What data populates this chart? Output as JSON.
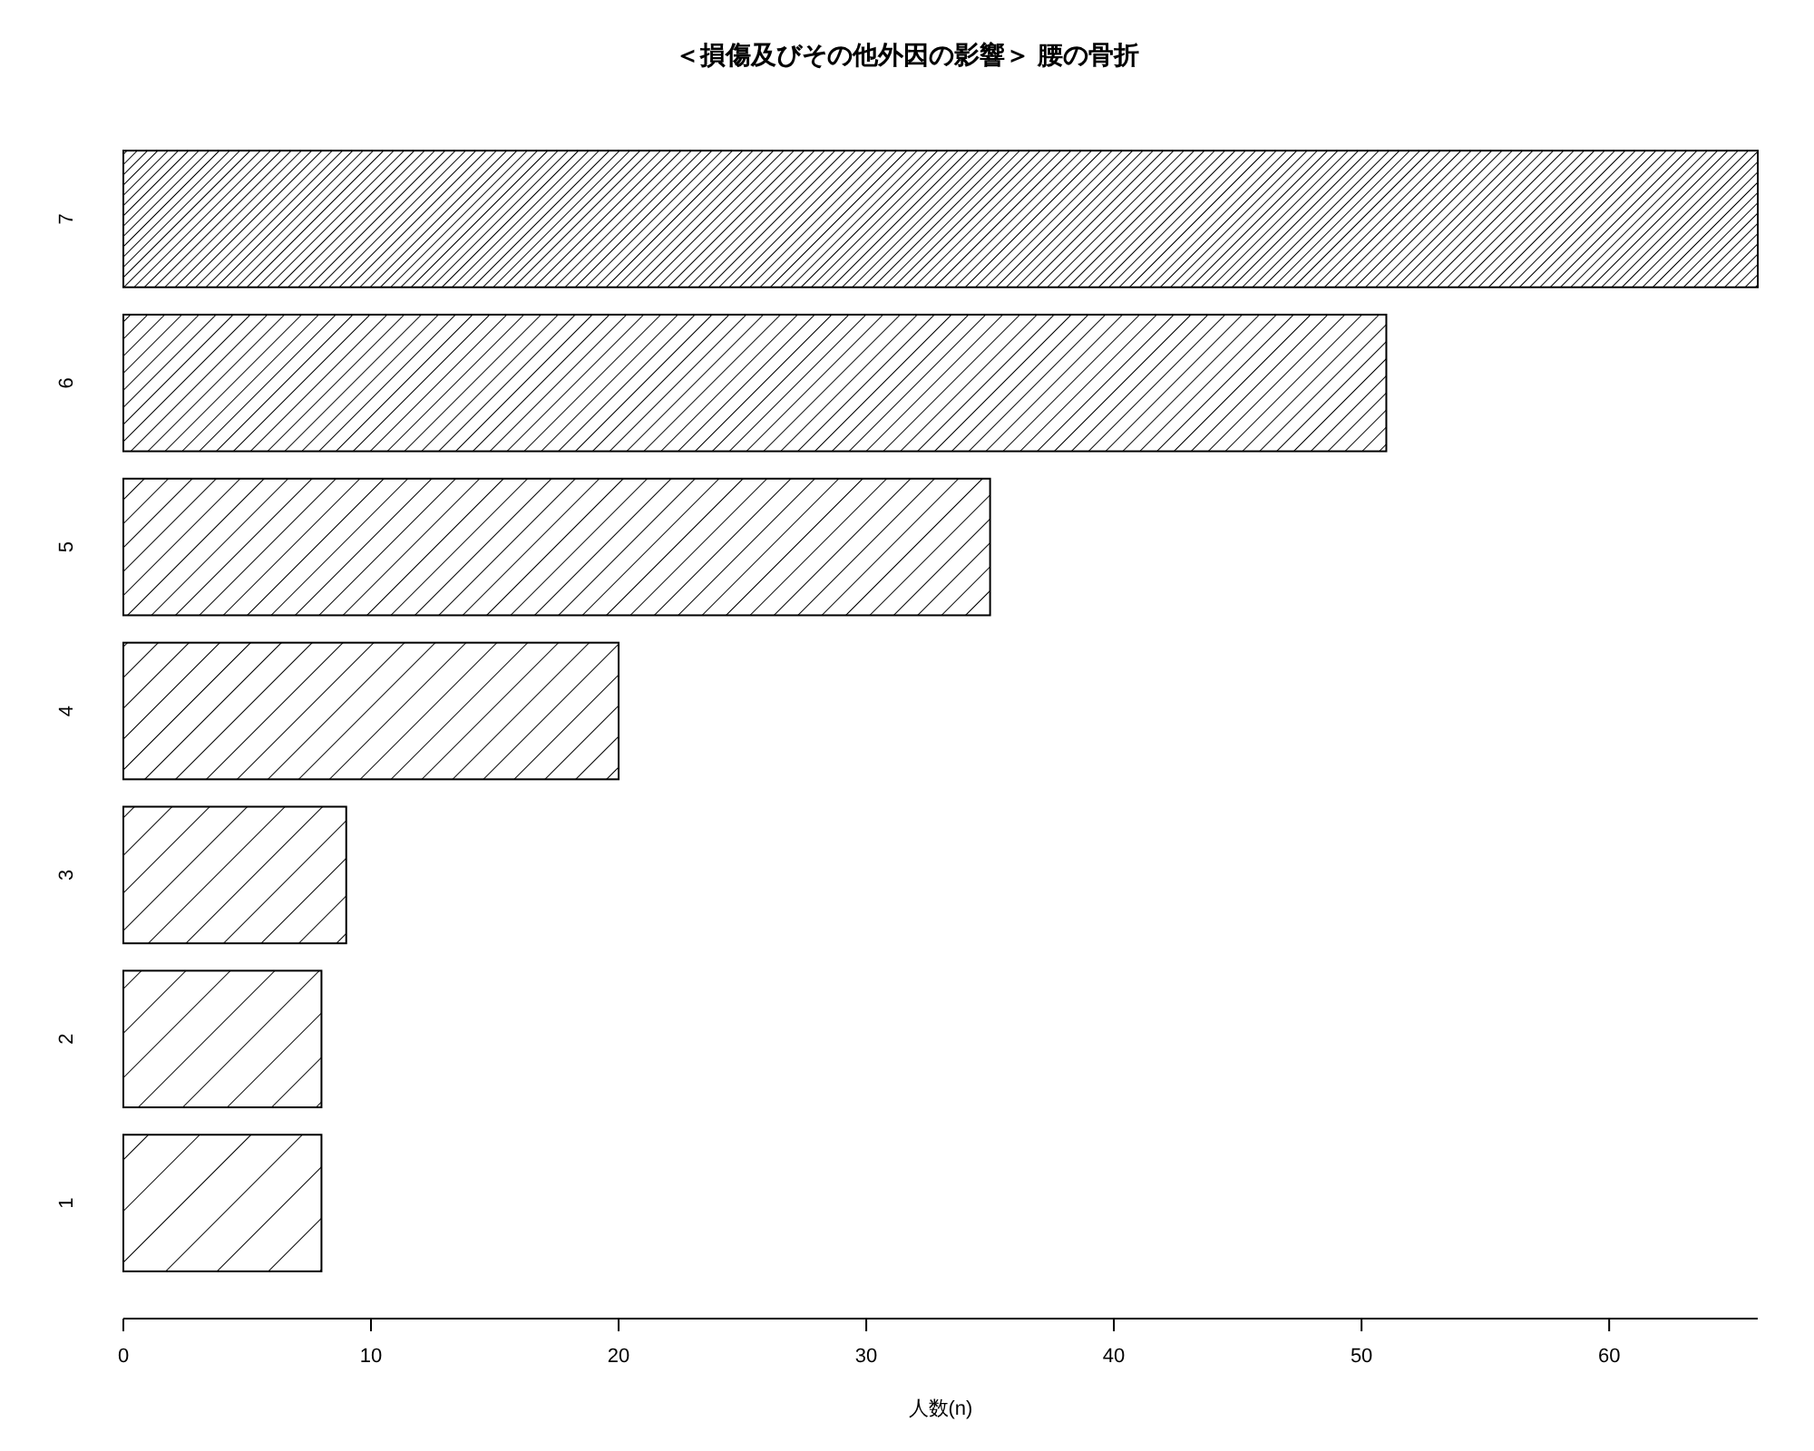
{
  "chart_data": {
    "type": "bar",
    "orientation": "horizontal",
    "title": "＜損傷及びその他外因の影響＞ 腰の骨折",
    "xlabel": "人数(n)",
    "categories": [
      "7",
      "6",
      "5",
      "4",
      "3",
      "2",
      "1"
    ],
    "values": [
      66,
      51,
      35,
      20,
      9,
      8,
      8
    ],
    "color": "#000000",
    "xlim": [
      0,
      66
    ],
    "xticks": [
      0,
      10,
      20,
      30,
      40,
      50,
      60
    ]
  }
}
